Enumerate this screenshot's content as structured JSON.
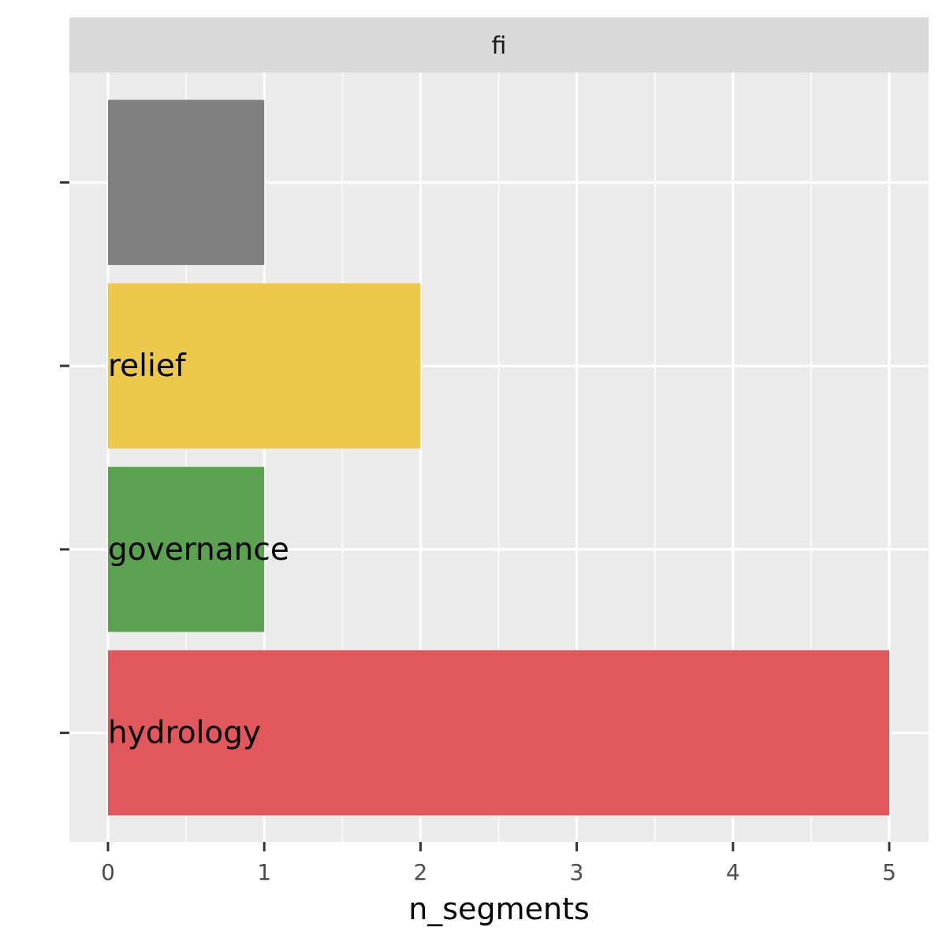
{
  "chart_data": {
    "type": "bar",
    "orientation": "horizontal",
    "facet": "fi",
    "xlabel": "n_segments",
    "ylabel": "",
    "xlim": [
      0,
      5
    ],
    "x_ticks": [
      "0",
      "1",
      "2",
      "3",
      "4",
      "5"
    ],
    "grid": true,
    "bars": [
      {
        "label": "",
        "value": 1,
        "color": "#808080"
      },
      {
        "label": "relief",
        "value": 2,
        "color": "#ECC94B"
      },
      {
        "label": "governance",
        "value": 1,
        "color": "#5BA250"
      },
      {
        "label": "hydrology",
        "value": 5,
        "color": "#E0585B"
      }
    ]
  }
}
